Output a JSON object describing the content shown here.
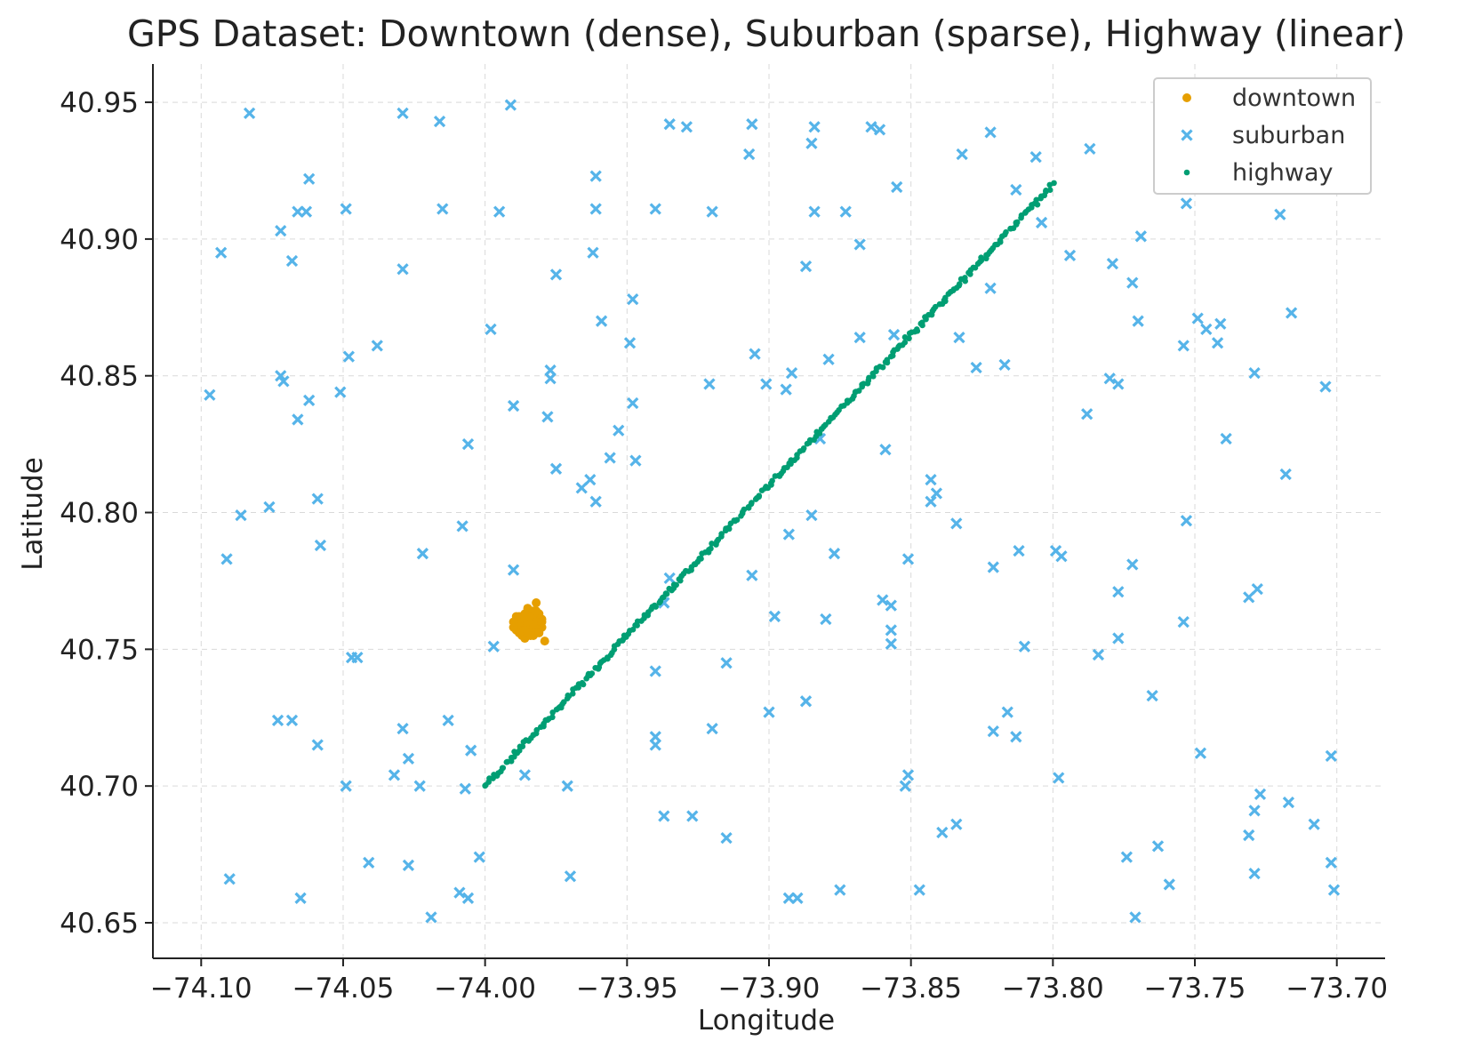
{
  "chart_data": {
    "type": "scatter",
    "title": "GPS Dataset: Downtown (dense), Suburban (sparse), Highway (linear)",
    "xlabel": "Longitude",
    "ylabel": "Latitude",
    "xlim": [
      -74.117,
      -73.683
    ],
    "ylim": [
      40.637,
      40.964
    ],
    "x_ticks": [
      -74.1,
      -74.05,
      -74.0,
      -73.95,
      -73.9,
      -73.85,
      -73.8,
      -73.75,
      -73.7
    ],
    "x_tick_labels": [
      "−74.10",
      "−74.05",
      "−74.00",
      "−73.95",
      "−73.90",
      "−73.85",
      "−73.80",
      "−73.75",
      "−73.70"
    ],
    "y_ticks": [
      40.65,
      40.7,
      40.75,
      40.8,
      40.85,
      40.9,
      40.95
    ],
    "y_tick_labels": [
      "40.65",
      "40.70",
      "40.75",
      "40.80",
      "40.85",
      "40.90",
      "40.95"
    ],
    "grid": true,
    "legend_position": "top-right",
    "series": [
      {
        "name": "downtown",
        "marker": "dot",
        "color": "#E69F00",
        "points": [
          [
            -73.988,
            40.762
          ],
          [
            -73.985,
            40.757
          ],
          [
            -73.982,
            40.759
          ],
          [
            -73.986,
            40.761
          ],
          [
            -73.983,
            40.755
          ],
          [
            -73.987,
            40.758
          ],
          [
            -73.981,
            40.76
          ],
          [
            -73.984,
            40.763
          ],
          [
            -73.989,
            40.757
          ],
          [
            -73.98,
            40.758
          ],
          [
            -73.986,
            40.754
          ],
          [
            -73.983,
            40.764
          ],
          [
            -73.985,
            40.76
          ],
          [
            -73.982,
            40.762
          ],
          [
            -73.988,
            40.759
          ],
          [
            -73.984,
            40.756
          ],
          [
            -73.981,
            40.757
          ],
          [
            -73.987,
            40.761
          ],
          [
            -73.985,
            40.763
          ],
          [
            -73.983,
            40.758
          ],
          [
            -73.986,
            40.759
          ],
          [
            -73.989,
            40.76
          ],
          [
            -73.98,
            40.761
          ],
          [
            -73.984,
            40.759
          ],
          [
            -73.982,
            40.756
          ],
          [
            -73.987,
            40.755
          ],
          [
            -73.985,
            40.765
          ],
          [
            -73.983,
            40.76
          ],
          [
            -73.981,
            40.763
          ],
          [
            -73.988,
            40.757
          ],
          [
            -73.986,
            40.76
          ],
          [
            -73.984,
            40.761
          ],
          [
            -73.982,
            40.758
          ],
          [
            -73.989,
            40.759
          ],
          [
            -73.985,
            40.756
          ],
          [
            -73.983,
            40.762
          ],
          [
            -73.987,
            40.76
          ],
          [
            -73.981,
            40.759
          ],
          [
            -73.984,
            40.757
          ],
          [
            -73.986,
            40.763
          ],
          [
            -73.988,
            40.76
          ],
          [
            -73.982,
            40.76
          ],
          [
            -73.985,
            40.759
          ],
          [
            -73.983,
            40.757
          ],
          [
            -73.987,
            40.762
          ],
          [
            -73.98,
            40.76
          ],
          [
            -73.986,
            40.757
          ],
          [
            -73.984,
            40.755
          ],
          [
            -73.988,
            40.761
          ],
          [
            -73.99,
            40.758
          ],
          [
            -73.982,
            40.764
          ],
          [
            -73.985,
            40.761
          ],
          [
            -73.983,
            40.759
          ],
          [
            -73.986,
            40.762
          ],
          [
            -73.981,
            40.756
          ],
          [
            -73.982,
            40.767
          ],
          [
            -73.979,
            40.753
          ],
          [
            -73.989,
            40.762
          ],
          [
            -73.988,
            40.756
          ],
          [
            -73.99,
            40.76
          ]
        ]
      },
      {
        "name": "suburban",
        "marker": "x",
        "color": "#56B4E9",
        "points": [
          [
            -74.083,
            40.946
          ],
          [
            -74.029,
            40.946
          ],
          [
            -74.016,
            40.943
          ],
          [
            -73.991,
            40.949
          ],
          [
            -73.935,
            40.942
          ],
          [
            -73.929,
            40.941
          ],
          [
            -73.906,
            40.942
          ],
          [
            -73.884,
            40.941
          ],
          [
            -73.864,
            40.941
          ],
          [
            -73.861,
            40.94
          ],
          [
            -73.822,
            40.939
          ],
          [
            -73.787,
            40.933
          ],
          [
            -73.885,
            40.935
          ],
          [
            -73.907,
            40.931
          ],
          [
            -73.832,
            40.931
          ],
          [
            -73.806,
            40.93
          ],
          [
            -73.725,
            40.929
          ],
          [
            -73.961,
            40.923
          ],
          [
            -74.062,
            40.922
          ],
          [
            -73.855,
            40.919
          ],
          [
            -73.813,
            40.918
          ],
          [
            -73.753,
            40.913
          ],
          [
            -74.015,
            40.911
          ],
          [
            -73.961,
            40.911
          ],
          [
            -73.94,
            40.911
          ],
          [
            -73.92,
            40.91
          ],
          [
            -73.884,
            40.91
          ],
          [
            -73.873,
            40.91
          ],
          [
            -73.995,
            40.91
          ],
          [
            -74.049,
            40.911
          ],
          [
            -74.063,
            40.91
          ],
          [
            -74.066,
            40.91
          ],
          [
            -73.72,
            40.909
          ],
          [
            -73.804,
            40.906
          ],
          [
            -74.072,
            40.903
          ],
          [
            -73.769,
            40.901
          ],
          [
            -73.868,
            40.898
          ],
          [
            -74.093,
            40.895
          ],
          [
            -73.962,
            40.895
          ],
          [
            -73.794,
            40.894
          ],
          [
            -74.068,
            40.892
          ],
          [
            -73.779,
            40.891
          ],
          [
            -73.887,
            40.89
          ],
          [
            -74.029,
            40.889
          ],
          [
            -73.975,
            40.887
          ],
          [
            -73.772,
            40.884
          ],
          [
            -73.822,
            40.882
          ],
          [
            -73.948,
            40.878
          ],
          [
            -73.716,
            40.873
          ],
          [
            -73.749,
            40.871
          ],
          [
            -73.959,
            40.87
          ],
          [
            -73.77,
            40.87
          ],
          [
            -73.741,
            40.869
          ],
          [
            -73.746,
            40.867
          ],
          [
            -73.998,
            40.867
          ],
          [
            -73.856,
            40.865
          ],
          [
            -73.833,
            40.864
          ],
          [
            -73.868,
            40.864
          ],
          [
            -73.949,
            40.862
          ],
          [
            -73.754,
            40.861
          ],
          [
            -73.742,
            40.862
          ],
          [
            -74.038,
            40.861
          ],
          [
            -73.905,
            40.858
          ],
          [
            -74.048,
            40.857
          ],
          [
            -73.879,
            40.856
          ],
          [
            -73.817,
            40.854
          ],
          [
            -73.827,
            40.853
          ],
          [
            -73.977,
            40.852
          ],
          [
            -73.892,
            40.851
          ],
          [
            -73.729,
            40.851
          ],
          [
            -74.072,
            40.85
          ],
          [
            -74.071,
            40.848
          ],
          [
            -73.977,
            40.849
          ],
          [
            -73.78,
            40.849
          ],
          [
            -73.921,
            40.847
          ],
          [
            -73.901,
            40.847
          ],
          [
            -73.777,
            40.847
          ],
          [
            -73.704,
            40.846
          ],
          [
            -73.894,
            40.845
          ],
          [
            -74.051,
            40.844
          ],
          [
            -74.097,
            40.843
          ],
          [
            -74.062,
            40.841
          ],
          [
            -73.948,
            40.84
          ],
          [
            -73.99,
            40.839
          ],
          [
            -73.788,
            40.836
          ],
          [
            -73.978,
            40.835
          ],
          [
            -74.066,
            40.834
          ],
          [
            -73.953,
            40.83
          ],
          [
            -73.882,
            40.827
          ],
          [
            -73.739,
            40.827
          ],
          [
            -74.006,
            40.825
          ],
          [
            -73.859,
            40.823
          ],
          [
            -73.956,
            40.82
          ],
          [
            -73.947,
            40.819
          ],
          [
            -73.975,
            40.816
          ],
          [
            -73.718,
            40.814
          ],
          [
            -73.843,
            40.812
          ],
          [
            -73.963,
            40.812
          ],
          [
            -73.966,
            40.809
          ],
          [
            -73.841,
            40.807
          ],
          [
            -74.059,
            40.805
          ],
          [
            -73.843,
            40.804
          ],
          [
            -73.961,
            40.804
          ],
          [
            -74.076,
            40.802
          ],
          [
            -74.086,
            40.799
          ],
          [
            -73.885,
            40.799
          ],
          [
            -73.753,
            40.797
          ],
          [
            -73.834,
            40.796
          ],
          [
            -74.008,
            40.795
          ],
          [
            -73.893,
            40.792
          ],
          [
            -74.058,
            40.788
          ],
          [
            -73.799,
            40.786
          ],
          [
            -73.812,
            40.786
          ],
          [
            -73.797,
            40.784
          ],
          [
            -74.022,
            40.785
          ],
          [
            -73.877,
            40.785
          ],
          [
            -74.091,
            40.783
          ],
          [
            -73.851,
            40.783
          ],
          [
            -73.821,
            40.78
          ],
          [
            -73.772,
            40.781
          ],
          [
            -73.99,
            40.779
          ],
          [
            -73.906,
            40.777
          ],
          [
            -73.935,
            40.776
          ],
          [
            -73.777,
            40.771
          ],
          [
            -73.728,
            40.772
          ],
          [
            -73.731,
            40.769
          ],
          [
            -73.86,
            40.768
          ],
          [
            -73.857,
            40.766
          ],
          [
            -73.937,
            40.767
          ],
          [
            -73.898,
            40.762
          ],
          [
            -73.88,
            40.761
          ],
          [
            -73.754,
            40.76
          ],
          [
            -73.857,
            40.757
          ],
          [
            -73.777,
            40.754
          ],
          [
            -73.857,
            40.752
          ],
          [
            -73.81,
            40.751
          ],
          [
            -73.997,
            40.751
          ],
          [
            -73.784,
            40.748
          ],
          [
            -74.047,
            40.747
          ],
          [
            -74.045,
            40.747
          ],
          [
            -73.915,
            40.745
          ],
          [
            -73.94,
            40.742
          ],
          [
            -73.765,
            40.733
          ],
          [
            -73.887,
            40.731
          ],
          [
            -73.9,
            40.727
          ],
          [
            -73.816,
            40.727
          ],
          [
            -74.073,
            40.724
          ],
          [
            -74.068,
            40.724
          ],
          [
            -74.013,
            40.724
          ],
          [
            -74.029,
            40.721
          ],
          [
            -73.92,
            40.721
          ],
          [
            -73.821,
            40.72
          ],
          [
            -73.813,
            40.718
          ],
          [
            -73.94,
            40.718
          ],
          [
            -73.94,
            40.715
          ],
          [
            -74.059,
            40.715
          ],
          [
            -74.005,
            40.713
          ],
          [
            -73.748,
            40.712
          ],
          [
            -74.027,
            40.71
          ],
          [
            -73.702,
            40.711
          ],
          [
            -74.032,
            40.704
          ],
          [
            -73.851,
            40.704
          ],
          [
            -73.986,
            40.704
          ],
          [
            -73.798,
            40.703
          ],
          [
            -74.049,
            40.7
          ],
          [
            -74.023,
            40.7
          ],
          [
            -74.007,
            40.699
          ],
          [
            -73.971,
            40.7
          ],
          [
            -73.852,
            40.7
          ],
          [
            -73.727,
            40.697
          ],
          [
            -73.717,
            40.694
          ],
          [
            -73.729,
            40.691
          ],
          [
            -73.937,
            40.689
          ],
          [
            -73.927,
            40.689
          ],
          [
            -73.834,
            40.686
          ],
          [
            -73.708,
            40.686
          ],
          [
            -73.839,
            40.683
          ],
          [
            -73.731,
            40.682
          ],
          [
            -73.915,
            40.681
          ],
          [
            -73.763,
            40.678
          ],
          [
            -74.002,
            40.674
          ],
          [
            -73.774,
            40.674
          ],
          [
            -74.041,
            40.672
          ],
          [
            -74.027,
            40.671
          ],
          [
            -73.702,
            40.672
          ],
          [
            -73.729,
            40.668
          ],
          [
            -73.97,
            40.667
          ],
          [
            -74.09,
            40.666
          ],
          [
            -73.759,
            40.664
          ],
          [
            -73.847,
            40.662
          ],
          [
            -73.875,
            40.662
          ],
          [
            -73.701,
            40.662
          ],
          [
            -74.009,
            40.661
          ],
          [
            -74.006,
            40.659
          ],
          [
            -74.065,
            40.659
          ],
          [
            -73.893,
            40.659
          ],
          [
            -73.89,
            40.659
          ],
          [
            -74.019,
            40.652
          ],
          [
            -73.771,
            40.652
          ]
        ]
      },
      {
        "name": "highway",
        "marker": "dot",
        "color": "#009E73",
        "start": [
          -74.0,
          40.7
        ],
        "end": [
          -73.8,
          40.92
        ],
        "n_points": 300
      }
    ]
  }
}
